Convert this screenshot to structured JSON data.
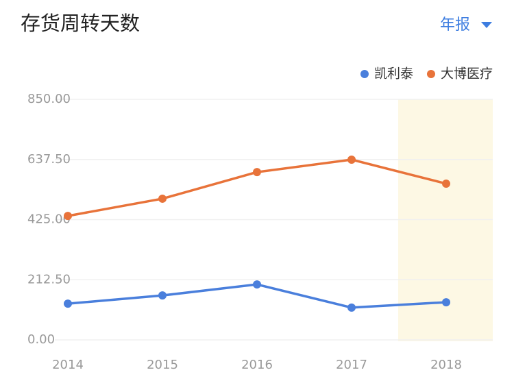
{
  "chart_data": {
    "type": "line",
    "title": "存货周转天数",
    "period_selector": "年报",
    "categories": [
      "2014",
      "2015",
      "2016",
      "2017",
      "2018"
    ],
    "series": [
      {
        "name": "凯利泰",
        "color": "#4a7fdc",
        "values": [
          128,
          157,
          196,
          114,
          133
        ]
      },
      {
        "name": "大博医疗",
        "color": "#e8733a",
        "values": [
          438,
          499,
          593,
          637,
          552
        ]
      }
    ],
    "ylim": [
      0,
      850
    ],
    "yticks": [
      {
        "value": 0,
        "label": "0.00"
      },
      {
        "value": 212.5,
        "label": "212.50"
      },
      {
        "value": 425,
        "label": "425.00"
      },
      {
        "value": 637.5,
        "label": "637.50"
      },
      {
        "value": 850,
        "label": "850.00"
      }
    ],
    "grid": true,
    "legend": "top-right"
  }
}
